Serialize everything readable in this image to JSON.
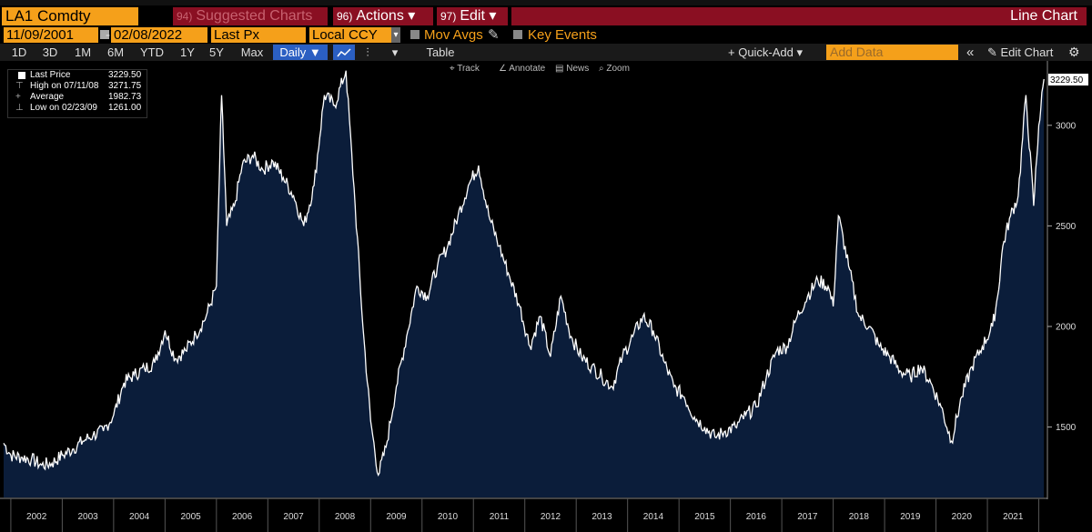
{
  "header": {
    "ticker": "LA1 Comdty",
    "suggested": {
      "num": "94)",
      "label": "Suggested Charts"
    },
    "actions": {
      "num": "96)",
      "label": "Actions ▾"
    },
    "edit": {
      "num": "97)",
      "label": "Edit ▾"
    },
    "chart_type": "Line Chart"
  },
  "controls": {
    "start_date": "11/09/2001",
    "dash": "-",
    "end_date": "02/08/2022",
    "field": "Last Px",
    "currency": "Local CCY",
    "mov_avgs": "Mov Avgs",
    "key_events": "Key Events"
  },
  "periods": [
    "1D",
    "3D",
    "1M",
    "6M",
    "YTD",
    "1Y",
    "5Y",
    "Max"
  ],
  "frequency": "Daily ▼",
  "toolbar": {
    "table": "Table",
    "quick_add": "+ Quick-Add ▾",
    "add_data_placeholder": "Add Data",
    "collapse": "«",
    "edit_chart": "Edit Chart"
  },
  "chart_tools": [
    "Track",
    "Annotate",
    "News",
    "Zoom"
  ],
  "legend": [
    {
      "name": "Last Price",
      "value": "3229.50"
    },
    {
      "name": "High on 07/11/08",
      "value": "3271.75"
    },
    {
      "name": "Average",
      "value": "1982.73"
    },
    {
      "name": "Low on 02/23/09",
      "value": "1261.00"
    }
  ],
  "colors": {
    "orange": "#f5a01a",
    "dark_red": "#8a0f22",
    "fill": "#0b1d3a",
    "line": "#ffffff",
    "active_blue": "#2b5fc2"
  },
  "chart_data": {
    "type": "area",
    "title": "",
    "series": [
      {
        "name": "Last Price"
      }
    ],
    "x": [
      2001.86,
      2002.0,
      2002.2,
      2002.4,
      2002.6,
      2002.8,
      2003.0,
      2003.2,
      2003.4,
      2003.6,
      2003.8,
      2004.0,
      2004.2,
      2004.4,
      2004.6,
      2004.8,
      2005.0,
      2005.2,
      2005.4,
      2005.6,
      2005.8,
      2006.0,
      2006.1,
      2006.2,
      2006.35,
      2006.5,
      2006.7,
      2006.9,
      2007.1,
      2007.3,
      2007.5,
      2007.7,
      2007.9,
      2008.1,
      2008.3,
      2008.52,
      2008.7,
      2008.85,
      2009.0,
      2009.15,
      2009.3,
      2009.5,
      2009.7,
      2009.9,
      2010.1,
      2010.3,
      2010.5,
      2010.7,
      2010.9,
      2011.1,
      2011.3,
      2011.5,
      2011.7,
      2011.9,
      2012.1,
      2012.3,
      2012.5,
      2012.7,
      2012.9,
      2013.1,
      2013.3,
      2013.5,
      2013.7,
      2013.9,
      2014.1,
      2014.3,
      2014.5,
      2014.7,
      2014.9,
      2015.1,
      2015.3,
      2015.5,
      2015.7,
      2015.9,
      2016.1,
      2016.3,
      2016.5,
      2016.7,
      2016.9,
      2017.1,
      2017.3,
      2017.5,
      2017.7,
      2017.9,
      2018.0,
      2018.1,
      2018.3,
      2018.5,
      2018.7,
      2018.9,
      2019.1,
      2019.3,
      2019.5,
      2019.7,
      2019.9,
      2020.1,
      2020.3,
      2020.5,
      2020.7,
      2020.9,
      2021.1,
      2021.2,
      2021.3,
      2021.45,
      2021.6,
      2021.75,
      2021.9,
      2022.0,
      2022.1
    ],
    "values": [
      1420,
      1360,
      1350,
      1340,
      1310,
      1320,
      1360,
      1390,
      1430,
      1460,
      1480,
      1560,
      1720,
      1760,
      1790,
      1820,
      1980,
      1840,
      1880,
      1960,
      2050,
      2200,
      3150,
      2500,
      2600,
      2800,
      2850,
      2780,
      2820,
      2740,
      2650,
      2500,
      2700,
      3150,
      3100,
      3271.75,
      2600,
      2000,
      1530,
      1261,
      1400,
      1700,
      1950,
      2200,
      2150,
      2300,
      2400,
      2550,
      2700,
      2800,
      2550,
      2400,
      2250,
      2100,
      1900,
      2050,
      1850,
      2150,
      1950,
      1850,
      1800,
      1750,
      1700,
      1850,
      1950,
      2050,
      1980,
      1830,
      1700,
      1650,
      1550,
      1500,
      1450,
      1480,
      1500,
      1560,
      1600,
      1750,
      1880,
      1900,
      2050,
      2150,
      2230,
      2200,
      2100,
      2550,
      2300,
      2050,
      2000,
      1900,
      1850,
      1780,
      1750,
      1800,
      1720,
      1600,
      1430,
      1650,
      1800,
      1900,
      2000,
      2150,
      2400,
      2550,
      2650,
      3150,
      2600,
      3000,
      3229.5
    ],
    "ylim": [
      1150,
      3320
    ],
    "y_ticks": [
      1500,
      2000,
      2500,
      3000
    ],
    "x_ticks": [
      "2002",
      "2003",
      "2004",
      "2005",
      "2006",
      "2007",
      "2008",
      "2009",
      "2010",
      "2011",
      "2012",
      "2013",
      "2014",
      "2015",
      "2016",
      "2017",
      "2018",
      "2019",
      "2020",
      "2021"
    ],
    "last_label": "3229.50",
    "grid": false
  }
}
